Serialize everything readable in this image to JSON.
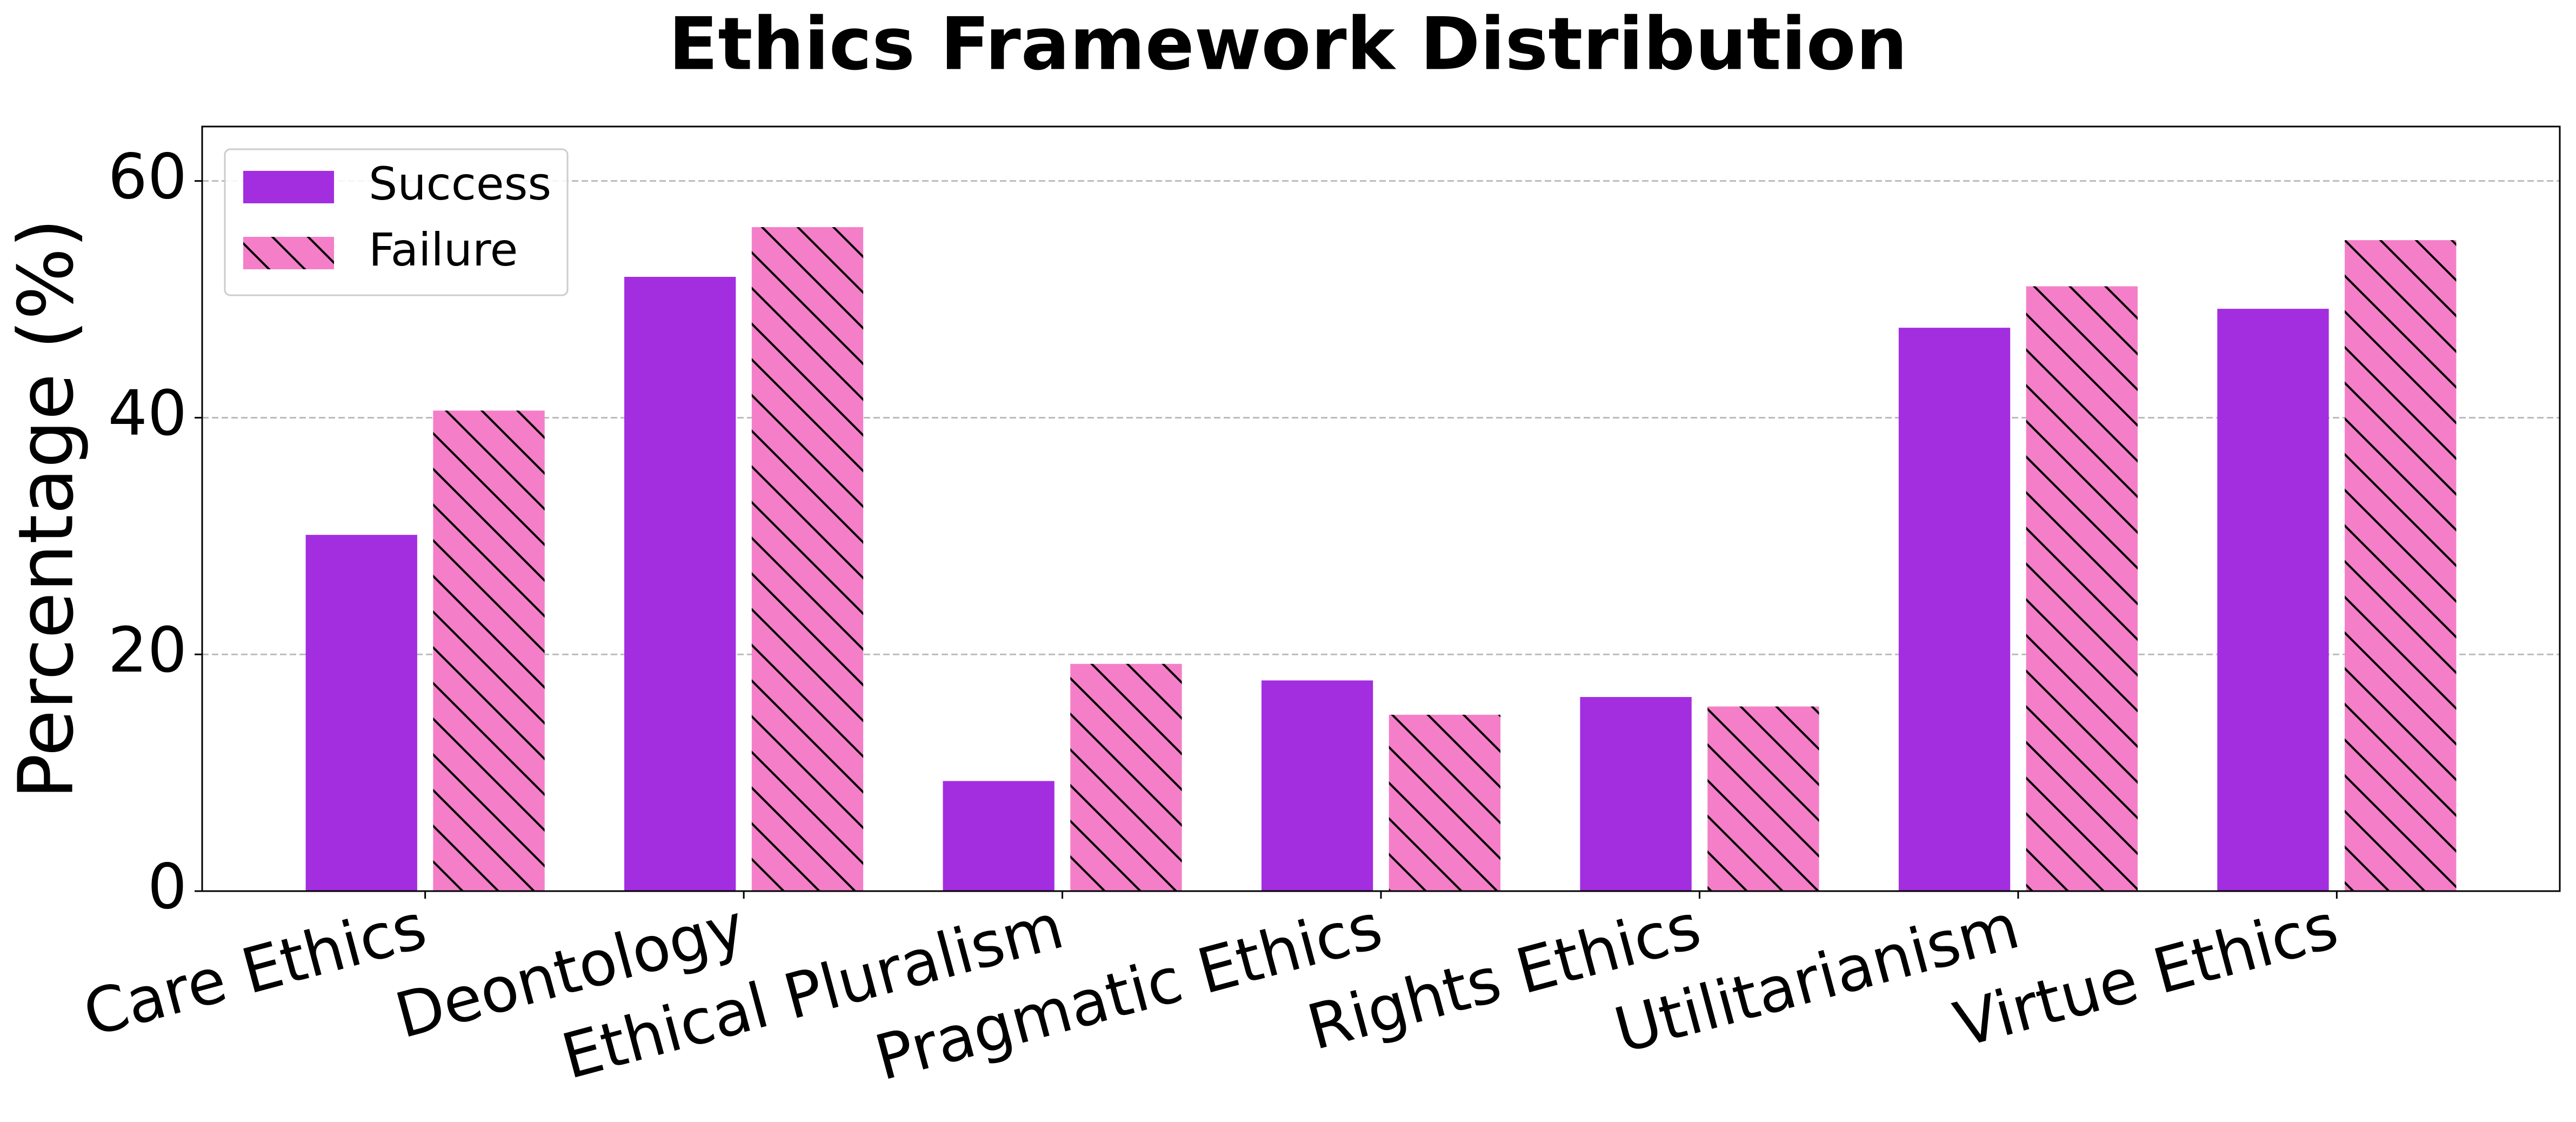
{
  "chart_data": {
    "type": "bar",
    "title": "Ethics Framework Distribution",
    "ylabel": "Percentage (%)",
    "categories": [
      "Care Ethics",
      "Deontology",
      "Ethical Pluralism",
      "Pragmatic Ethics",
      "Rights Ethics",
      "Utilitarianism",
      "Virtue Ethics"
    ],
    "series": [
      {
        "name": "Success",
        "color": "#a22ee0",
        "values": [
          30.1,
          51.9,
          9.3,
          17.8,
          16.4,
          47.6,
          49.2
        ]
      },
      {
        "name": "Failure",
        "color": "#f47fc8",
        "hatch": "\\",
        "values": [
          40.6,
          56.1,
          19.2,
          14.9,
          15.6,
          51.1,
          55.0
        ]
      }
    ],
    "ylim": [
      0,
      64.6
    ],
    "yticks": [
      0,
      20,
      40,
      60
    ],
    "grid": true,
    "legend": "upper left"
  }
}
